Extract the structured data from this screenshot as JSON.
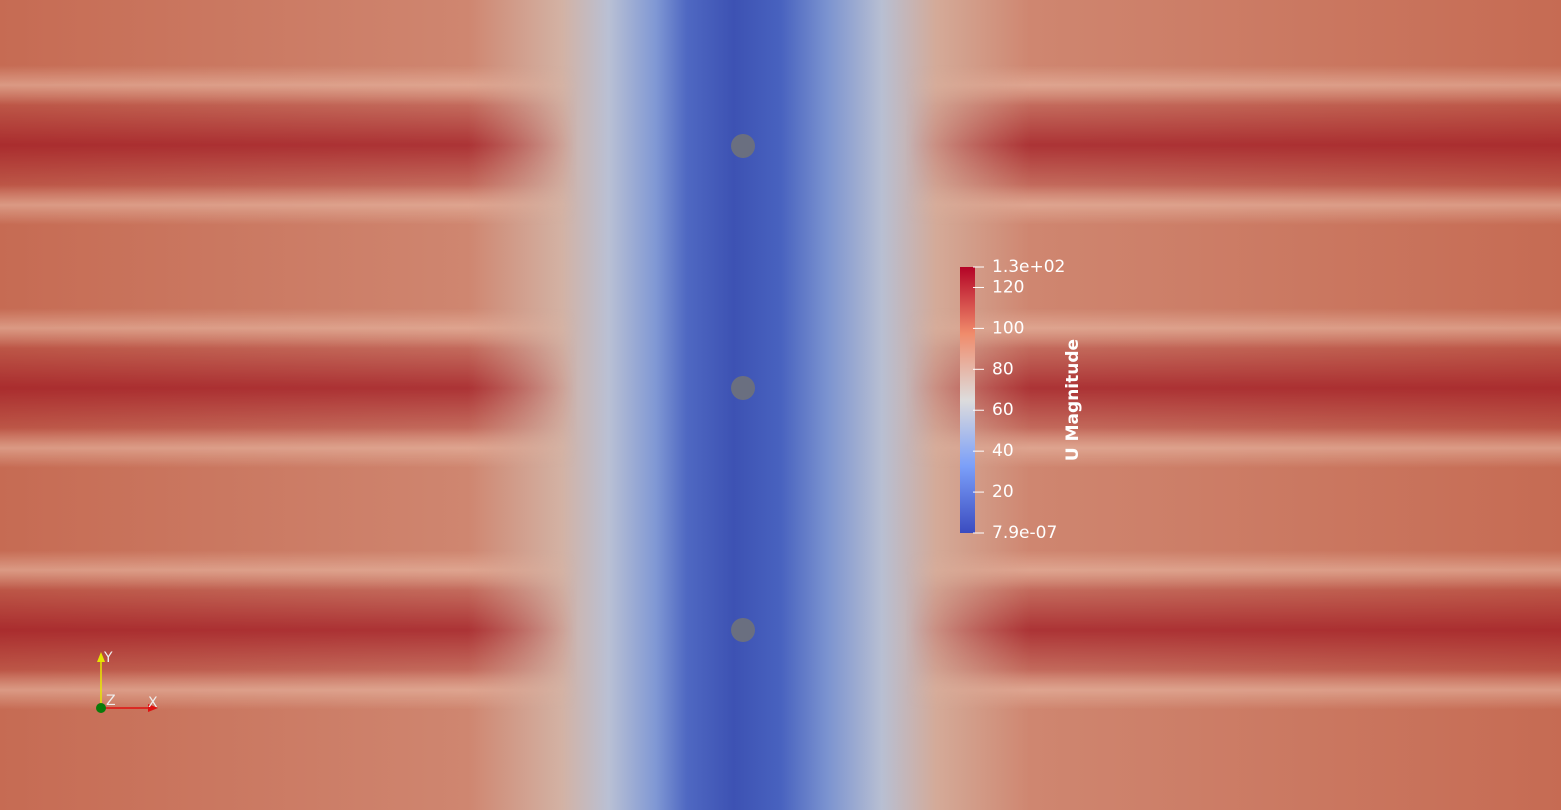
{
  "colorbar": {
    "title": "U Magnitude",
    "range": [
      7.9e-07,
      130
    ],
    "ticks": [
      {
        "value": 130,
        "label": "1.3e+02"
      },
      120,
      100,
      80,
      60,
      40,
      20,
      {
        "value": 7.9e-07,
        "label": "7.9e-07"
      }
    ]
  },
  "axes": {
    "x": "X",
    "y": "Y",
    "z": "Z"
  }
}
